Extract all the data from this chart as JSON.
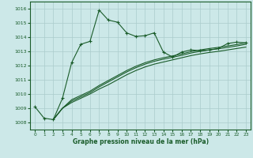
{
  "xlabel": "Graphe pression niveau de la mer (hPa)",
  "bg_color": "#cce8e8",
  "grid_color": "#aacccc",
  "line_color": "#1a5c2a",
  "xlim": [
    -0.5,
    23.5
  ],
  "ylim": [
    1007.5,
    1016.5
  ],
  "yticks": [
    1008,
    1009,
    1010,
    1011,
    1012,
    1013,
    1014,
    1015,
    1016
  ],
  "xticks": [
    0,
    1,
    2,
    3,
    4,
    5,
    6,
    7,
    8,
    9,
    10,
    11,
    12,
    13,
    14,
    15,
    16,
    17,
    18,
    19,
    20,
    21,
    22,
    23
  ],
  "series1_x": [
    0,
    1,
    2,
    3,
    4,
    5,
    6,
    7,
    8,
    9,
    10,
    11,
    12,
    13,
    14,
    15,
    16,
    17,
    18,
    19,
    20,
    21,
    22,
    23
  ],
  "series1_y": [
    1009.1,
    1008.3,
    1008.2,
    1009.7,
    1012.2,
    1013.5,
    1013.7,
    1015.9,
    1015.2,
    1015.05,
    1014.3,
    1014.05,
    1014.1,
    1014.3,
    1012.95,
    1012.6,
    1012.95,
    1013.1,
    1013.05,
    1013.1,
    1013.2,
    1013.55,
    1013.65,
    1013.6
  ],
  "series2_x": [
    2,
    3,
    4,
    5,
    6,
    7,
    8,
    9,
    10,
    11,
    12,
    13,
    14,
    15,
    16,
    17,
    18,
    19,
    20,
    21,
    22,
    23
  ],
  "series2_y": [
    1008.2,
    1009.0,
    1009.4,
    1009.7,
    1010.0,
    1010.35,
    1010.65,
    1011.0,
    1011.35,
    1011.65,
    1011.9,
    1012.1,
    1012.25,
    1012.4,
    1012.55,
    1012.7,
    1012.82,
    1012.92,
    1013.0,
    1013.1,
    1013.2,
    1013.3
  ],
  "series3_x": [
    2,
    3,
    4,
    5,
    6,
    7,
    8,
    9,
    10,
    11,
    12,
    13,
    14,
    15,
    16,
    17,
    18,
    19,
    20,
    21,
    22,
    23
  ],
  "series3_y": [
    1008.2,
    1009.0,
    1009.5,
    1009.8,
    1010.1,
    1010.5,
    1010.85,
    1011.2,
    1011.55,
    1011.85,
    1012.1,
    1012.3,
    1012.45,
    1012.58,
    1012.72,
    1012.88,
    1013.0,
    1013.1,
    1013.18,
    1013.28,
    1013.38,
    1013.5
  ],
  "series4_x": [
    2,
    3,
    4,
    5,
    6,
    7,
    8,
    9,
    10,
    11,
    12,
    13,
    14,
    15,
    16,
    17,
    18,
    19,
    20,
    21,
    22,
    23
  ],
  "series4_y": [
    1008.2,
    1009.0,
    1009.6,
    1009.9,
    1010.2,
    1010.6,
    1010.95,
    1011.3,
    1011.65,
    1011.95,
    1012.2,
    1012.4,
    1012.55,
    1012.68,
    1012.82,
    1012.98,
    1013.1,
    1013.2,
    1013.28,
    1013.38,
    1013.48,
    1013.6
  ],
  "linewidth": 0.8,
  "markersize": 3.5
}
